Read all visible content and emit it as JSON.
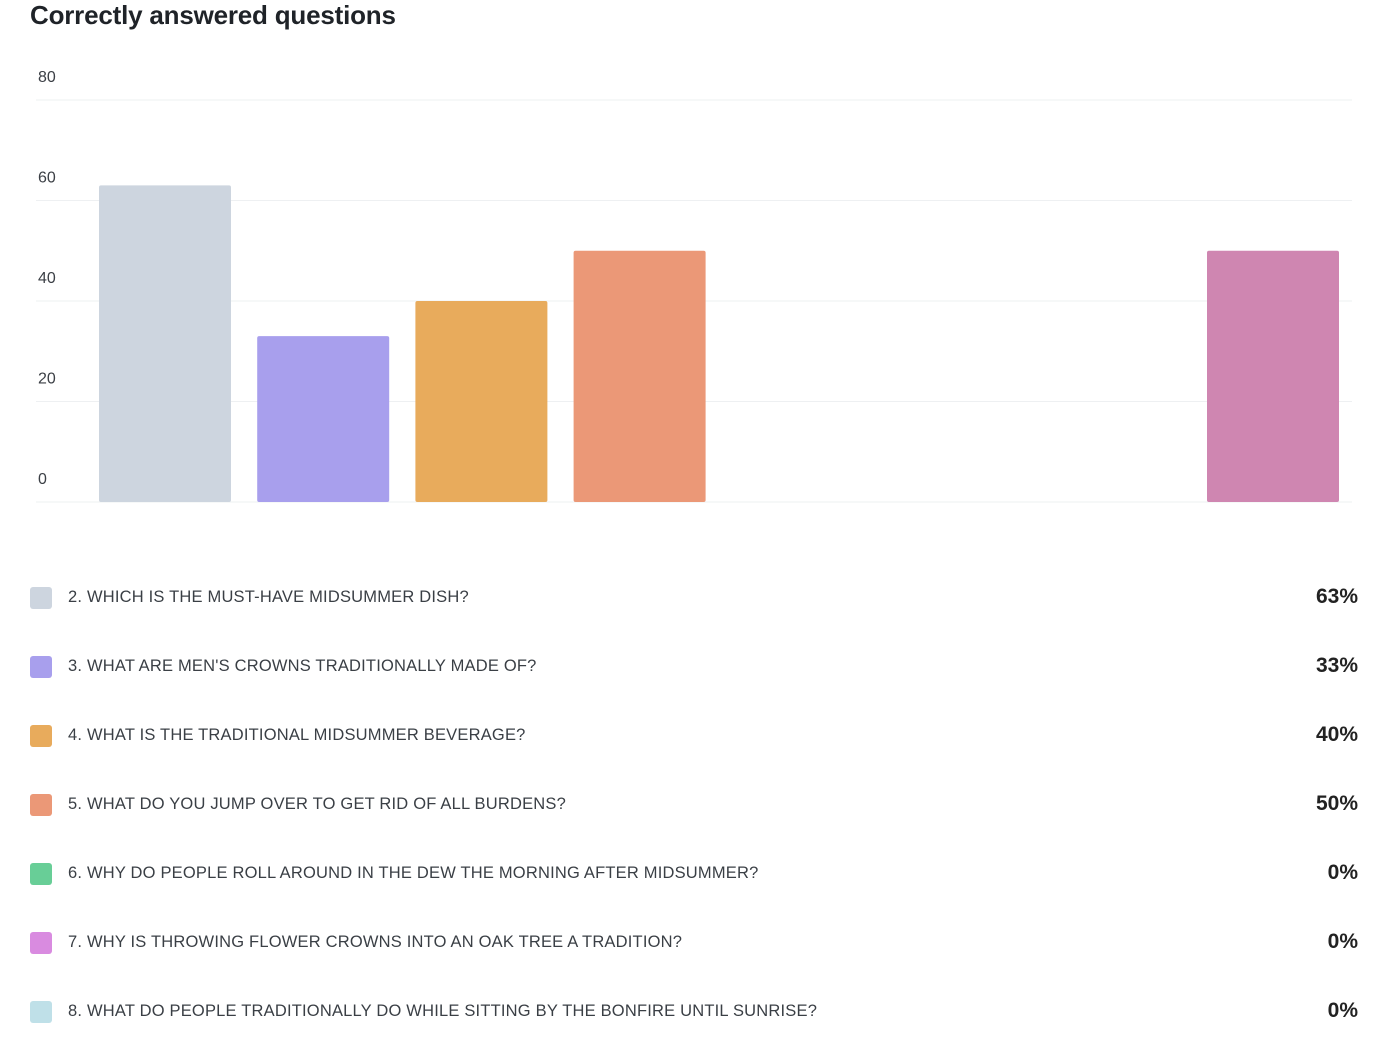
{
  "chart_data": {
    "type": "bar",
    "title": "Correctly answered questions",
    "xlabel": "",
    "ylabel": "",
    "ylim": [
      0,
      80
    ],
    "yticks": [
      0,
      20,
      40,
      60,
      80
    ],
    "grid": true,
    "categories": [
      "2. WHICH IS THE MUST-HAVE MIDSUMMER DISH?",
      "3. WHAT ARE MEN'S CROWNS TRADITIONALLY MADE OF?",
      "4. WHAT IS THE TRADITIONAL MIDSUMMER BEVERAGE?",
      "5. WHAT DO YOU JUMP OVER TO GET RID OF ALL BURDENS?",
      "6. WHY DO PEOPLE ROLL AROUND IN THE DEW THE MORNING AFTER MIDSUMMER?",
      "7. WHY IS THROWING FLOWER CROWNS INTO AN OAK TREE A TRADITION?",
      "8. WHAT DO PEOPLE TRADITIONALLY DO WHILE SITTING BY THE BONFIRE UNTIL SUNRISE?"
    ],
    "values": [
      63,
      33,
      40,
      50,
      0,
      0,
      0
    ],
    "percent_labels": [
      "63%",
      "33%",
      "40%",
      "50%",
      "0%",
      "0%",
      "0%"
    ],
    "colors": [
      "#cdd5df",
      "#a89fed",
      "#e8ab5c",
      "#eb9877",
      "#68ce97",
      "#d98be0",
      "#bfe0e8"
    ],
    "extra_bar": {
      "value": 50,
      "color": "#cf86b1"
    },
    "legend_position": "bottom"
  }
}
